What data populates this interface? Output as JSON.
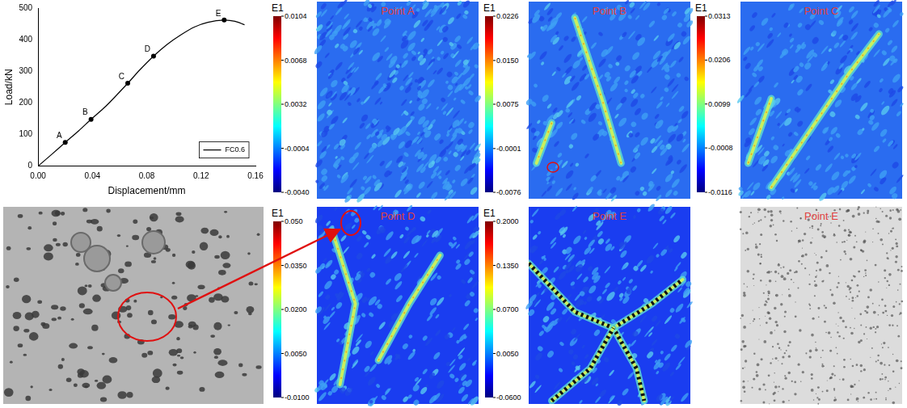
{
  "chart_data": {
    "type": "line",
    "x_label": "Displacement/mm",
    "y_label": "Load/kN",
    "series": [
      {
        "name": "FC0.6",
        "color": "#000000",
        "x": [
          0,
          0.01,
          0.02,
          0.03,
          0.039,
          0.05,
          0.066,
          0.075,
          0.085,
          0.095,
          0.105,
          0.115,
          0.125,
          0.137,
          0.145,
          0.152
        ],
        "values": [
          0,
          37,
          75,
          112,
          148,
          190,
          262,
          305,
          348,
          385,
          415,
          440,
          455,
          462,
          458,
          447
        ]
      }
    ],
    "annotations": [
      {
        "label": "A",
        "x": 0.02,
        "y": 75
      },
      {
        "label": "B",
        "x": 0.039,
        "y": 148
      },
      {
        "label": "C",
        "x": 0.066,
        "y": 262
      },
      {
        "label": "D",
        "x": 0.085,
        "y": 348
      },
      {
        "label": "E",
        "x": 0.137,
        "y": 462
      }
    ],
    "xlim": [
      0,
      0.16
    ],
    "xticks": [
      {
        "value": 0,
        "label": "0.00"
      },
      {
        "value": 0.04,
        "label": "0.04"
      },
      {
        "value": 0.08,
        "label": "0.08"
      },
      {
        "value": 0.12,
        "label": "0.12"
      },
      {
        "value": 0.16,
        "label": "0.16"
      }
    ],
    "ylim": [
      0,
      500
    ],
    "yticks": [
      0,
      100,
      200,
      300,
      400,
      500
    ],
    "grid": false,
    "legend": "lower right"
  },
  "panels": [
    {
      "title": "Point A",
      "colorbar": {
        "label": "E1",
        "range": [
          -0.004,
          0.0104
        ],
        "ticks": [
          {
            "value": 0.0104,
            "label": "0.0104"
          },
          {
            "value": 0.0068,
            "label": "0.0068"
          },
          {
            "value": 0.0032,
            "label": "0.0032"
          },
          {
            "value": -0.0004,
            "label": "-0.0004"
          },
          {
            "value": -0.004,
            "label": "-0.0040"
          }
        ]
      }
    },
    {
      "title": "Point B",
      "colorbar": {
        "label": "E1",
        "range": [
          -0.0076,
          0.0226
        ],
        "ticks": [
          {
            "value": 0.0226,
            "label": "0.0226"
          },
          {
            "value": 0.015,
            "label": "0.0150"
          },
          {
            "value": 0.0075,
            "label": "0.0075"
          },
          {
            "value": -0.0001,
            "label": "-0.0001"
          },
          {
            "value": -0.0076,
            "label": "-0.0076"
          }
        ]
      }
    },
    {
      "title": "Point C",
      "colorbar": {
        "label": "E1",
        "range": [
          -0.0116,
          0.0313
        ],
        "ticks": [
          {
            "value": 0.0313,
            "label": "0.0313"
          },
          {
            "value": 0.0206,
            "label": "0.0206"
          },
          {
            "value": 0.0099,
            "label": "0.0099"
          },
          {
            "value": -0.0008,
            "label": "-0.0008"
          },
          {
            "value": -0.0116,
            "label": "-0.0116"
          }
        ]
      }
    },
    {
      "title": "Point D",
      "colorbar": {
        "label": "E1",
        "range": [
          -0.01,
          0.05
        ],
        "ticks": [
          {
            "value": 0.05,
            "label": "0.050"
          },
          {
            "value": 0.035,
            "label": "0.0350"
          },
          {
            "value": 0.02,
            "label": "0.0200"
          },
          {
            "value": 0.005,
            "label": "0.0050"
          },
          {
            "value": -0.01,
            "label": "-0.0100"
          }
        ]
      }
    },
    {
      "title": "Point E",
      "colorbar": {
        "label": "E1",
        "range": [
          -0.06,
          0.2
        ],
        "ticks": [
          {
            "value": 0.2,
            "label": "0.2000"
          },
          {
            "value": 0.135,
            "label": "0.1350"
          },
          {
            "value": 0.07,
            "label": "0.0700"
          },
          {
            "value": 0.005,
            "label": "0.0050"
          },
          {
            "value": -0.06,
            "label": "-0.0600"
          }
        ]
      }
    }
  ],
  "photo": {
    "title": "Point E"
  }
}
